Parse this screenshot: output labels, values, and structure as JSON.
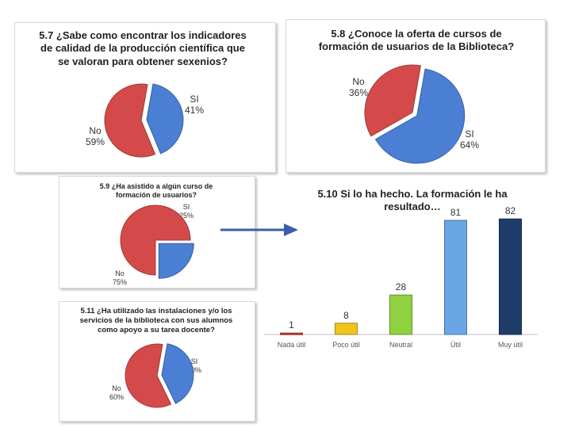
{
  "chart_data": [
    {
      "id": "c57",
      "type": "pie",
      "title": "5.7 ¿Sabe como encontrar los indicadores de calidad de la producción científica que se valoran para obtener sexenios?",
      "title_lines": [
        "5.7 ¿Sabe como encontrar los indicadores",
        "de calidad de la producción científica que",
        "se valoran para obtener sexenios?"
      ],
      "slices": [
        {
          "label": "SI",
          "pct_label": "41%",
          "value": 41,
          "color": "#4a7fd4"
        },
        {
          "label": "No",
          "pct_label": "59%",
          "value": 59,
          "color": "#d44a4a"
        }
      ]
    },
    {
      "id": "c58",
      "type": "pie",
      "title": "5.8 ¿Conoce la oferta de cursos de formación de usuarios de la Biblioteca?",
      "title_lines": [
        "5.8 ¿Conoce la oferta de cursos de",
        "formación de usuarios de la Biblioteca?"
      ],
      "slices": [
        {
          "label": "SI",
          "pct_label": "64%",
          "value": 64,
          "color": "#4a7fd4"
        },
        {
          "label": "No",
          "pct_label": "36%",
          "value": 36,
          "color": "#d44a4a"
        }
      ]
    },
    {
      "id": "c59",
      "type": "pie",
      "title": "5.9 ¿Ha asistido a algún curso de formación de usuarios?",
      "title_lines": [
        "5.9 ¿Ha asistido a algún curso de",
        "formación de usuarios?"
      ],
      "slices": [
        {
          "label": "SI",
          "pct_label": "25%",
          "value": 25,
          "color": "#4a7fd4"
        },
        {
          "label": "No",
          "pct_label": "75%",
          "value": 75,
          "color": "#d44a4a"
        }
      ]
    },
    {
      "id": "c510",
      "type": "bar",
      "title": "5.10 Si lo ha hecho. La formación le ha resultado…",
      "title_lines": [
        "5.10 Si lo ha hecho. La formación le ha",
        "resultado…"
      ],
      "categories": [
        "Nada útil",
        "Poco útil",
        "Neutral",
        "Útil",
        "Muy útil"
      ],
      "values": [
        1,
        8,
        28,
        81,
        82
      ],
      "colors": [
        "#d43a3a",
        "#f0c419",
        "#8fd13f",
        "#6aa5e6",
        "#1f3d6b"
      ],
      "ylim": [
        0,
        90
      ]
    },
    {
      "id": "c511",
      "type": "pie",
      "title": "5.11 ¿Ha utilizado las instalaciones y/o los servicios de la biblioteca con sus alumnos como apoyo a su tarea docente?",
      "title_lines": [
        "5.11 ¿Ha utilizado las instalaciones y/o los",
        "servicios de la biblioteca con sus alumnos",
        "como apoyo a su tarea docente?"
      ],
      "slices": [
        {
          "label": "SI",
          "pct_label": "40%",
          "value": 40,
          "color": "#4a7fd4"
        },
        {
          "label": "No",
          "pct_label": "60%",
          "value": 60,
          "color": "#d44a4a"
        }
      ]
    }
  ],
  "connector": {
    "icon": "arrow-right-icon",
    "color": "#3a5fa8"
  }
}
